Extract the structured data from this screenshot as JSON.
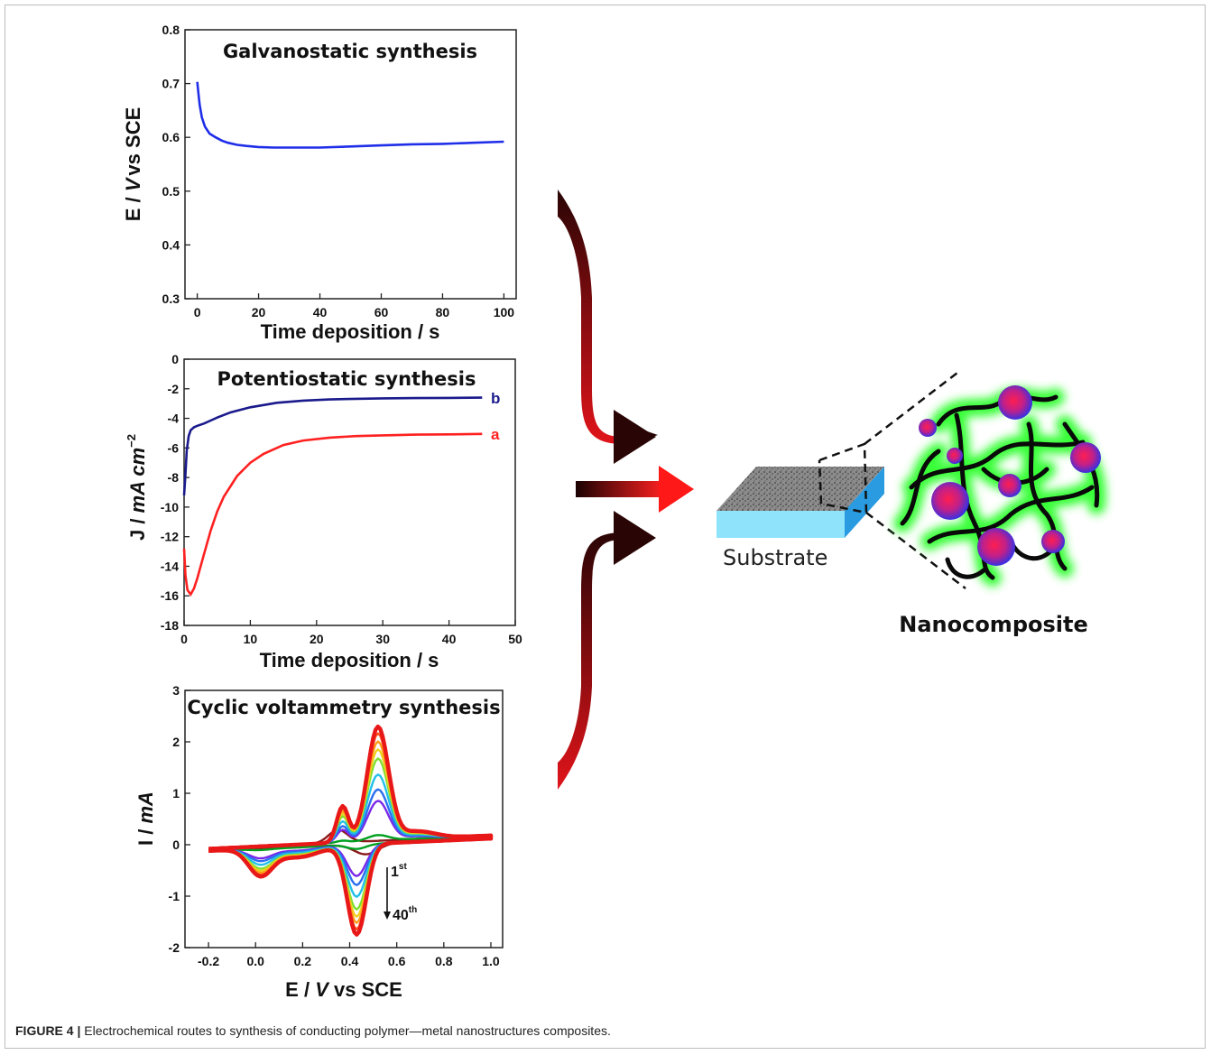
{
  "caption": {
    "label": "FIGURE 4 |",
    "text": "Electrochemical routes to synthesis of conducting polymer—metal nanostructures composites."
  },
  "colors": {
    "galvanostatic": "#1f2ee8",
    "series_a": "#ff2020",
    "series_b": "#1a1a8c",
    "arrow_dark": "#2a0505",
    "arrow_red": "#e0141a"
  },
  "diagram": {
    "substrate_label": "Substrate",
    "nanocomposite_label": "Nanocomposite"
  },
  "chart_data": [
    {
      "type": "line",
      "title": "Galvanostatic synthesis",
      "xlabel": "Time deposition / s",
      "ylabel_parts": [
        "E / ",
        "V",
        "vs SCE"
      ],
      "xlim": [
        -4,
        104
      ],
      "ylim": [
        0.3,
        0.8
      ],
      "xticks": [
        0,
        20,
        40,
        60,
        80,
        100
      ],
      "yticks": [
        0.3,
        0.4,
        0.5,
        0.6,
        0.7,
        0.8
      ],
      "ytick_decimals": 1,
      "series": [
        {
          "x": [
            0,
            0.4,
            0.8,
            1.5,
            2.5,
            4,
            6,
            8,
            10,
            13,
            16,
            20,
            25,
            30,
            40,
            50,
            60,
            70,
            80,
            90,
            100
          ],
          "y": [
            0.703,
            0.68,
            0.66,
            0.637,
            0.62,
            0.607,
            0.6,
            0.594,
            0.59,
            0.586,
            0.584,
            0.582,
            0.581,
            0.581,
            0.581,
            0.583,
            0.585,
            0.587,
            0.588,
            0.59,
            0.592
          ]
        }
      ]
    },
    {
      "type": "line",
      "title": "Potentiostatic  synthesis",
      "xlabel": "Time deposition / s",
      "ylabel_parts": [
        "J / ",
        "mA cm",
        "−2"
      ],
      "xlim": [
        0,
        50
      ],
      "ylim": [
        -18,
        0
      ],
      "xticks": [
        0,
        10,
        20,
        30,
        40,
        50
      ],
      "yticks": [
        0,
        -2,
        -4,
        -6,
        -8,
        -10,
        -12,
        -14,
        -16,
        -18
      ],
      "ytick_decimals": 0,
      "series": [
        {
          "name": "b",
          "x": [
            0,
            0.2,
            0.4,
            0.7,
            1,
            1.5,
            2,
            3,
            4,
            5,
            7,
            10,
            14,
            18,
            22,
            26,
            30,
            35,
            40,
            45
          ],
          "y": [
            -9.2,
            -7.8,
            -6.2,
            -5.2,
            -4.8,
            -4.6,
            -4.5,
            -4.35,
            -4.15,
            -3.95,
            -3.6,
            -3.25,
            -2.95,
            -2.8,
            -2.72,
            -2.68,
            -2.65,
            -2.63,
            -2.62,
            -2.6
          ]
        },
        {
          "name": "a",
          "x": [
            0,
            0.2,
            0.5,
            1,
            1.5,
            2,
            3,
            4,
            5,
            6,
            8,
            10,
            12,
            15,
            18,
            22,
            26,
            30,
            35,
            40,
            45
          ],
          "y": [
            -12.8,
            -14.6,
            -15.6,
            -15.9,
            -15.5,
            -14.8,
            -13.2,
            -11.6,
            -10.3,
            -9.3,
            -7.9,
            -7.0,
            -6.4,
            -5.8,
            -5.5,
            -5.3,
            -5.2,
            -5.15,
            -5.1,
            -5.08,
            -5.05
          ]
        }
      ]
    },
    {
      "type": "line",
      "title": "Cyclic voltammetry synthesis",
      "xlabel_parts": [
        "E / ",
        "V",
        " vs SCE"
      ],
      "ylabel_parts": [
        "I / ",
        "mA"
      ],
      "xlim": [
        -0.3,
        1.05
      ],
      "ylim": [
        -2,
        3
      ],
      "xticks": [
        -0.2,
        0.0,
        0.2,
        0.4,
        0.6,
        0.8,
        1.0
      ],
      "yticks": [
        -2,
        -1,
        0,
        1,
        2,
        3
      ],
      "xtick_decimals": 1,
      "ytick_decimals": 0,
      "annotation": {
        "from_num": "1",
        "from_sup": "st",
        "to_num": "40",
        "to_sup": "th"
      },
      "cycles": [
        {
          "color": "#8b1a1a",
          "s": 0.0
        },
        {
          "color": "#00a020",
          "s": 0.05
        },
        {
          "color": "#7a28e8",
          "s": 0.35
        },
        {
          "color": "#2a6ff0",
          "s": 0.45
        },
        {
          "color": "#22c0e8",
          "s": 0.58
        },
        {
          "color": "#7fe030",
          "s": 0.72
        },
        {
          "color": "#f0d020",
          "s": 0.8
        },
        {
          "color": "#ff9a18",
          "s": 0.87
        },
        {
          "color": "#ff5020",
          "s": 0.94
        },
        {
          "color": "#e81818",
          "s": 1.0
        }
      ]
    }
  ]
}
